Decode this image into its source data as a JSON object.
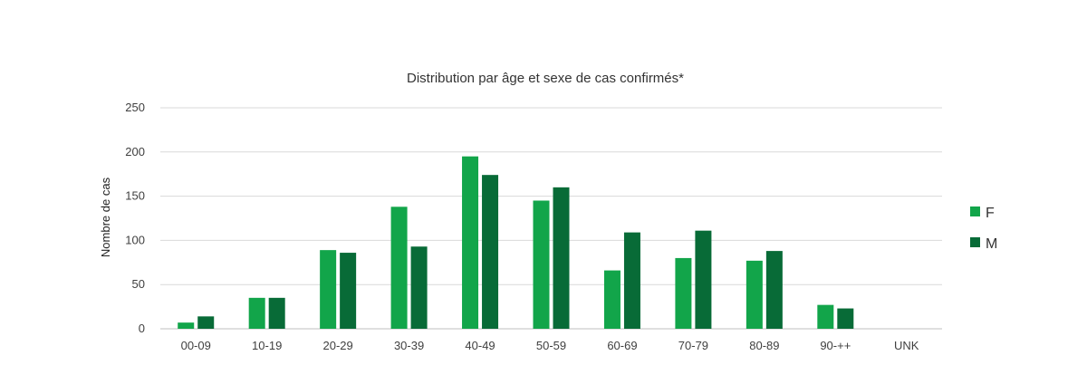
{
  "chart_data": {
    "type": "bar",
    "title": "Distribution par âge et sexe de cas confirmés*",
    "xlabel": "",
    "ylabel": "Nombre de cas",
    "ylim": [
      0,
      250
    ],
    "yticks": [
      0,
      50,
      100,
      150,
      200,
      250
    ],
    "grid": true,
    "legend_position": "right",
    "categories": [
      "00-09",
      "10-19",
      "20-29",
      "30-39",
      "40-49",
      "50-59",
      "60-69",
      "70-79",
      "80-89",
      "90-++",
      "UNK"
    ],
    "series": [
      {
        "name": "F",
        "color": "#12a54a",
        "values": [
          7,
          35,
          89,
          138,
          195,
          145,
          66,
          80,
          77,
          27,
          0
        ]
      },
      {
        "name": "M",
        "color": "#086b37",
        "values": [
          14,
          35,
          86,
          93,
          174,
          160,
          109,
          111,
          88,
          23,
          0
        ]
      }
    ]
  }
}
